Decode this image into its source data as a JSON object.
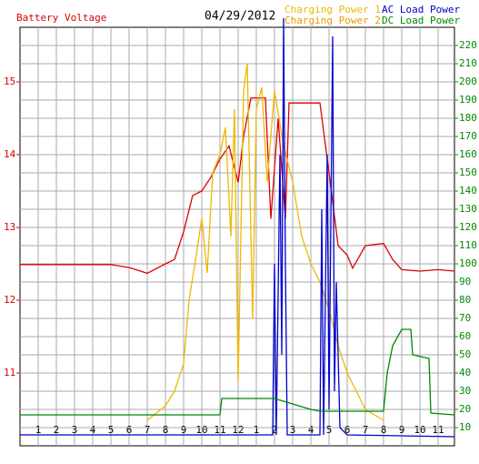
{
  "chart_data": {
    "type": "line",
    "title": "04/29/2012",
    "y_label": "Battery Voltage",
    "xlim": [
      0,
      23.9
    ],
    "xticks": [
      1,
      2,
      3,
      4,
      5,
      6,
      7,
      8,
      9,
      10,
      11,
      12,
      {
        "value": 13,
        "label": "1"
      },
      {
        "value": 14,
        "label": "2"
      },
      {
        "value": 15,
        "label": "3"
      },
      {
        "value": 16,
        "label": "4"
      },
      {
        "value": 17,
        "label": "5"
      },
      {
        "value": 18,
        "label": "6"
      },
      {
        "value": 19,
        "label": "7"
      },
      {
        "value": 20,
        "label": "8"
      },
      {
        "value": 21,
        "label": "9"
      },
      {
        "value": 22,
        "label": "10"
      },
      {
        "value": 23,
        "label": "11"
      }
    ],
    "ylim": [
      10,
      15.75
    ],
    "yticks": [
      11,
      12,
      13,
      14,
      15
    ],
    "y2lim": [
      0,
      230
    ],
    "y2ticks": [
      10,
      20,
      30,
      40,
      50,
      60,
      70,
      80,
      90,
      100,
      110,
      120,
      130,
      140,
      150,
      160,
      170,
      180,
      190,
      200,
      210,
      220
    ],
    "grid": true,
    "series": [
      {
        "name": "Battery Voltage",
        "color": "#dd0000",
        "axis": "y",
        "x": [
          0,
          5,
          6,
          7,
          8,
          8.5,
          9,
          9.5,
          10,
          10.5,
          11,
          11.5,
          12,
          12.3,
          12.7,
          13.5,
          13.8,
          14.2,
          14.6,
          14.8,
          16.5,
          17,
          17.5,
          18,
          18.3,
          19,
          20,
          20.5,
          21,
          22,
          23,
          23.9
        ],
        "values": [
          12.49,
          12.49,
          12.45,
          12.37,
          12.5,
          12.56,
          12.94,
          13.44,
          13.5,
          13.69,
          13.94,
          14.12,
          13.62,
          14.25,
          14.78,
          14.78,
          13.12,
          14.5,
          13.12,
          14.71,
          14.71,
          13.75,
          12.75,
          12.62,
          12.44,
          12.75,
          12.78,
          12.56,
          12.42,
          12.4,
          12.42,
          12.4
        ]
      },
      {
        "name": "Charging Power 1",
        "color": "#f0b800",
        "axis": "y2",
        "x": [
          7,
          8,
          8.5,
          9,
          9.3,
          9.7,
          10,
          10.3,
          10.6,
          11,
          11.3,
          11.6,
          11.8,
          12,
          12.3,
          12.5,
          12.8,
          13,
          13.3,
          13.6,
          14,
          14.5,
          15,
          15.5,
          16,
          16.5,
          17,
          17.5,
          18,
          18.5,
          19,
          19.5,
          20
        ],
        "values": [
          14,
          22,
          30,
          45,
          80,
          105,
          125,
          95,
          150,
          160,
          175,
          115,
          185,
          35,
          195,
          210,
          70,
          185,
          197,
          145,
          195,
          165,
          145,
          115,
          100,
          90,
          75,
          55,
          40,
          30,
          20,
          17,
          14
        ]
      },
      {
        "name": "Charging Power 2",
        "color": "#e89a00",
        "axis": "y2",
        "x": [],
        "values": []
      },
      {
        "name": "AC Load Power",
        "color": "#0000cc",
        "axis": "y2",
        "x": [
          0,
          13.9,
          14,
          14.1,
          14.3,
          14.4,
          14.5,
          14.6,
          14.7,
          16.5,
          16.6,
          16.7,
          16.9,
          17,
          17.2,
          17.3,
          17.4,
          17.6,
          18,
          23.9
        ],
        "values": [
          6,
          6,
          100,
          6,
          160,
          50,
          235,
          100,
          6,
          6,
          130,
          6,
          160,
          20,
          225,
          30,
          90,
          10,
          6,
          5
        ]
      },
      {
        "name": "DC Load Power",
        "color": "#008800",
        "axis": "y2",
        "x": [
          0,
          11,
          11.1,
          14,
          16,
          16.5,
          20,
          20.2,
          20.5,
          21,
          21.5,
          21.6,
          22.5,
          22.6,
          23.9
        ],
        "values": [
          17,
          17,
          26,
          26,
          20,
          19,
          19,
          40,
          55,
          64,
          64,
          50,
          48,
          18,
          17
        ]
      }
    ]
  }
}
